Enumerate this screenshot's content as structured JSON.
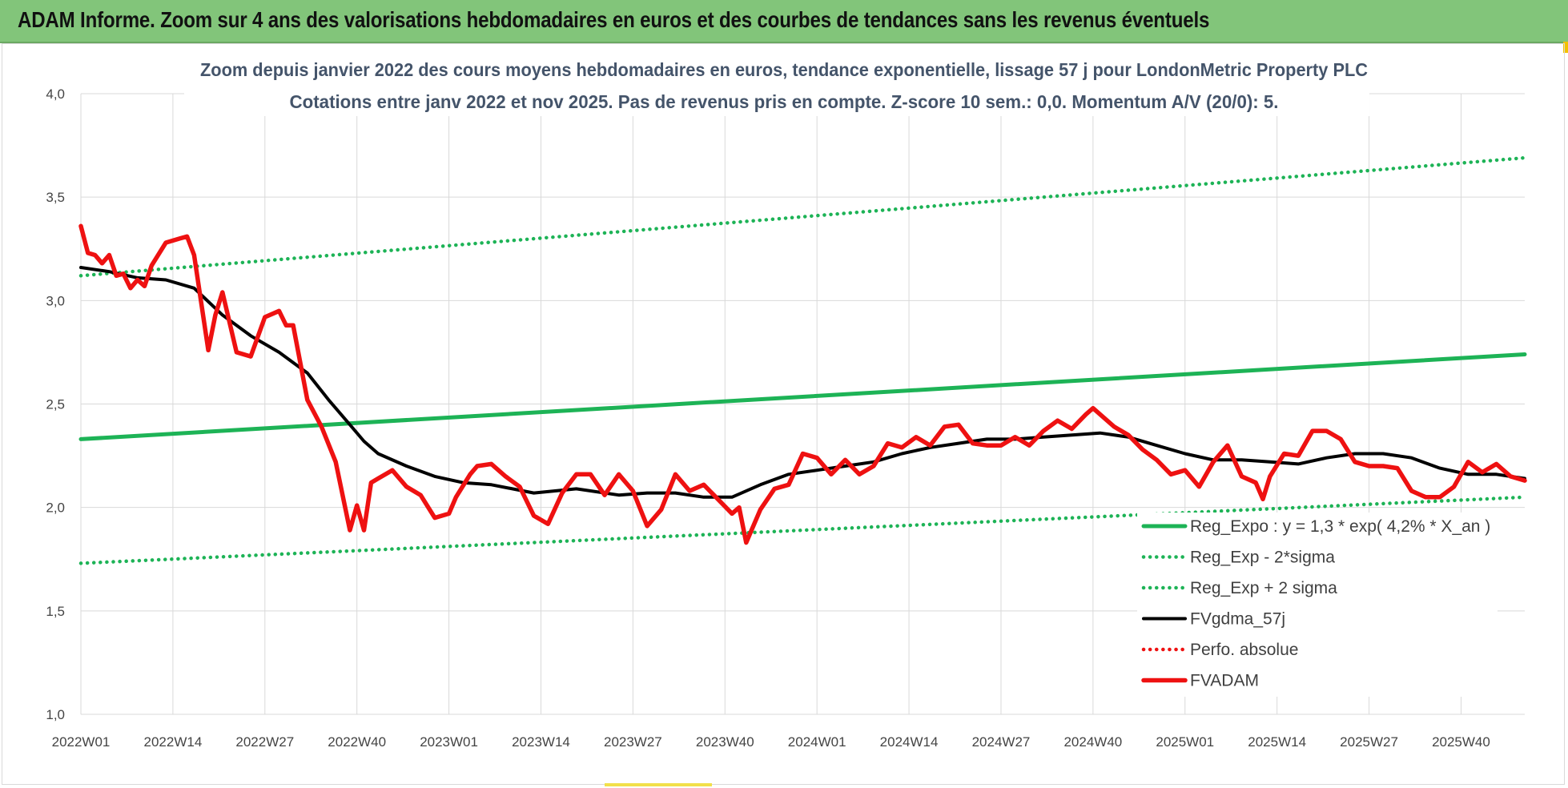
{
  "header": {
    "title": "ADAM Informe. Zoom sur 4 ans des valorisations hebdomadaires en euros et des courbes de tendances sans les revenus éventuels"
  },
  "colors": {
    "banner": "#82c57a",
    "reg_expo": "#1db356",
    "reg_bands": "#1db356",
    "fvgdma": "#000000",
    "fvadam": "#ee1111",
    "perfo": "#ee1111"
  },
  "chart_data": {
    "type": "line",
    "title_lines": [
      "Zoom depuis janvier 2022 des cours moyens hebdomadaires en euros, tendance exponentielle, lissage 57 j pour LondonMetric Property PLC",
      "Cotations entre janv 2022 et nov 2025. Pas de revenus pris en compte. Z-score 10 sem.: 0,0. Momentum A/V (20/0): 5."
    ],
    "ylim": [
      1.0,
      4.0
    ],
    "yticks": [
      "1,0",
      "1,5",
      "2,0",
      "2,5",
      "3,0",
      "3,5",
      "4,0"
    ],
    "ytick_values": [
      1.0,
      1.5,
      2.0,
      2.5,
      3.0,
      3.5,
      4.0
    ],
    "x_week_range": [
      0,
      204
    ],
    "xticks": [
      "2022W01",
      "2022W14",
      "2022W27",
      "2022W40",
      "2023W01",
      "2023W14",
      "2023W27",
      "2023W40",
      "2024W01",
      "2024W14",
      "2024W27",
      "2024W40",
      "2025W01",
      "2025W14",
      "2025W27",
      "2025W40"
    ],
    "xtick_weeks": [
      0,
      13,
      26,
      39,
      52,
      65,
      78,
      91,
      104,
      117,
      130,
      143,
      156,
      169,
      182,
      195
    ],
    "series": [
      {
        "name": "Reg_Expo : y = 1,3 * exp( 4,2% *  X_an )",
        "style": "solid-thick",
        "color_key": "reg_expo",
        "x": [
          0,
          204
        ],
        "y": [
          2.33,
          2.74
        ]
      },
      {
        "name": "Reg_Exp - 2*sigma",
        "style": "dotted",
        "color_key": "reg_bands",
        "x": [
          0,
          204
        ],
        "y": [
          1.73,
          2.05
        ]
      },
      {
        "name": "Reg_Exp + 2 sigma",
        "style": "dotted",
        "color_key": "reg_bands",
        "x": [
          0,
          204
        ],
        "y": [
          3.12,
          3.69
        ]
      },
      {
        "name": "FVgdma_57j",
        "style": "solid",
        "color_key": "fvgdma",
        "x": [
          0,
          4,
          8,
          12,
          16,
          20,
          24,
          28,
          32,
          35,
          38,
          40,
          42,
          46,
          50,
          54,
          58,
          64,
          70,
          76,
          80,
          84,
          88,
          92,
          96,
          100,
          104,
          108,
          112,
          116,
          120,
          124,
          128,
          132,
          136,
          140,
          144,
          148,
          152,
          156,
          160,
          164,
          168,
          172,
          176,
          180,
          184,
          188,
          192,
          196,
          200,
          204
        ],
        "y": [
          3.16,
          3.14,
          3.11,
          3.1,
          3.06,
          2.93,
          2.83,
          2.75,
          2.65,
          2.52,
          2.4,
          2.32,
          2.26,
          2.2,
          2.15,
          2.12,
          2.11,
          2.07,
          2.09,
          2.06,
          2.07,
          2.07,
          2.05,
          2.05,
          2.11,
          2.16,
          2.18,
          2.2,
          2.22,
          2.26,
          2.29,
          2.31,
          2.33,
          2.33,
          2.34,
          2.35,
          2.36,
          2.34,
          2.3,
          2.26,
          2.23,
          2.23,
          2.22,
          2.21,
          2.24,
          2.26,
          2.26,
          2.24,
          2.19,
          2.16,
          2.16,
          2.14
        ]
      },
      {
        "name": "Perfo. absolue",
        "style": "dotted",
        "color_key": "perfo",
        "x": [],
        "y": []
      },
      {
        "name": "FVADAM",
        "style": "solid-thick",
        "color_key": "fvadam",
        "x": [
          0,
          1,
          2,
          3,
          4,
          5,
          6,
          7,
          8,
          9,
          10,
          12,
          14,
          15,
          16,
          18,
          19,
          20,
          22,
          24,
          26,
          28,
          29,
          30,
          32,
          34,
          36,
          38,
          39,
          40,
          41,
          42,
          44,
          46,
          48,
          50,
          52,
          53,
          55,
          56,
          58,
          60,
          62,
          64,
          66,
          68,
          70,
          72,
          74,
          76,
          78,
          80,
          82,
          84,
          86,
          88,
          90,
          92,
          93,
          94,
          96,
          98,
          100,
          102,
          104,
          106,
          108,
          110,
          112,
          114,
          116,
          118,
          120,
          122,
          124,
          126,
          128,
          130,
          132,
          134,
          136,
          138,
          140,
          142,
          143,
          144,
          146,
          148,
          150,
          152,
          154,
          156,
          158,
          160,
          162,
          164,
          166,
          167,
          168,
          170,
          172,
          174,
          176,
          178,
          180,
          182,
          184,
          186,
          188,
          190,
          192,
          194,
          196,
          198,
          200,
          202,
          204
        ],
        "y": [
          3.36,
          3.23,
          3.22,
          3.18,
          3.22,
          3.12,
          3.13,
          3.06,
          3.1,
          3.07,
          3.17,
          3.28,
          3.3,
          3.31,
          3.22,
          2.76,
          2.93,
          3.04,
          2.75,
          2.73,
          2.92,
          2.95,
          2.88,
          2.88,
          2.52,
          2.39,
          2.22,
          1.89,
          2.01,
          1.89,
          2.12,
          2.14,
          2.18,
          2.1,
          2.06,
          1.95,
          1.97,
          2.05,
          2.16,
          2.2,
          2.21,
          2.15,
          2.1,
          1.96,
          1.92,
          2.07,
          2.16,
          2.16,
          2.06,
          2.16,
          2.08,
          1.91,
          1.99,
          2.16,
          2.08,
          2.11,
          2.04,
          1.97,
          2.0,
          1.83,
          1.99,
          2.09,
          2.11,
          2.26,
          2.24,
          2.16,
          2.23,
          2.16,
          2.2,
          2.31,
          2.29,
          2.34,
          2.3,
          2.39,
          2.4,
          2.31,
          2.3,
          2.3,
          2.34,
          2.3,
          2.37,
          2.42,
          2.38,
          2.45,
          2.48,
          2.45,
          2.39,
          2.35,
          2.28,
          2.23,
          2.16,
          2.18,
          2.1,
          2.22,
          2.3,
          2.15,
          2.12,
          2.04,
          2.15,
          2.26,
          2.25,
          2.37,
          2.37,
          2.33,
          2.22,
          2.2,
          2.2,
          2.19,
          2.08,
          2.05,
          2.05,
          2.1,
          2.22,
          2.17,
          2.21,
          2.15,
          2.13
        ]
      }
    ]
  }
}
